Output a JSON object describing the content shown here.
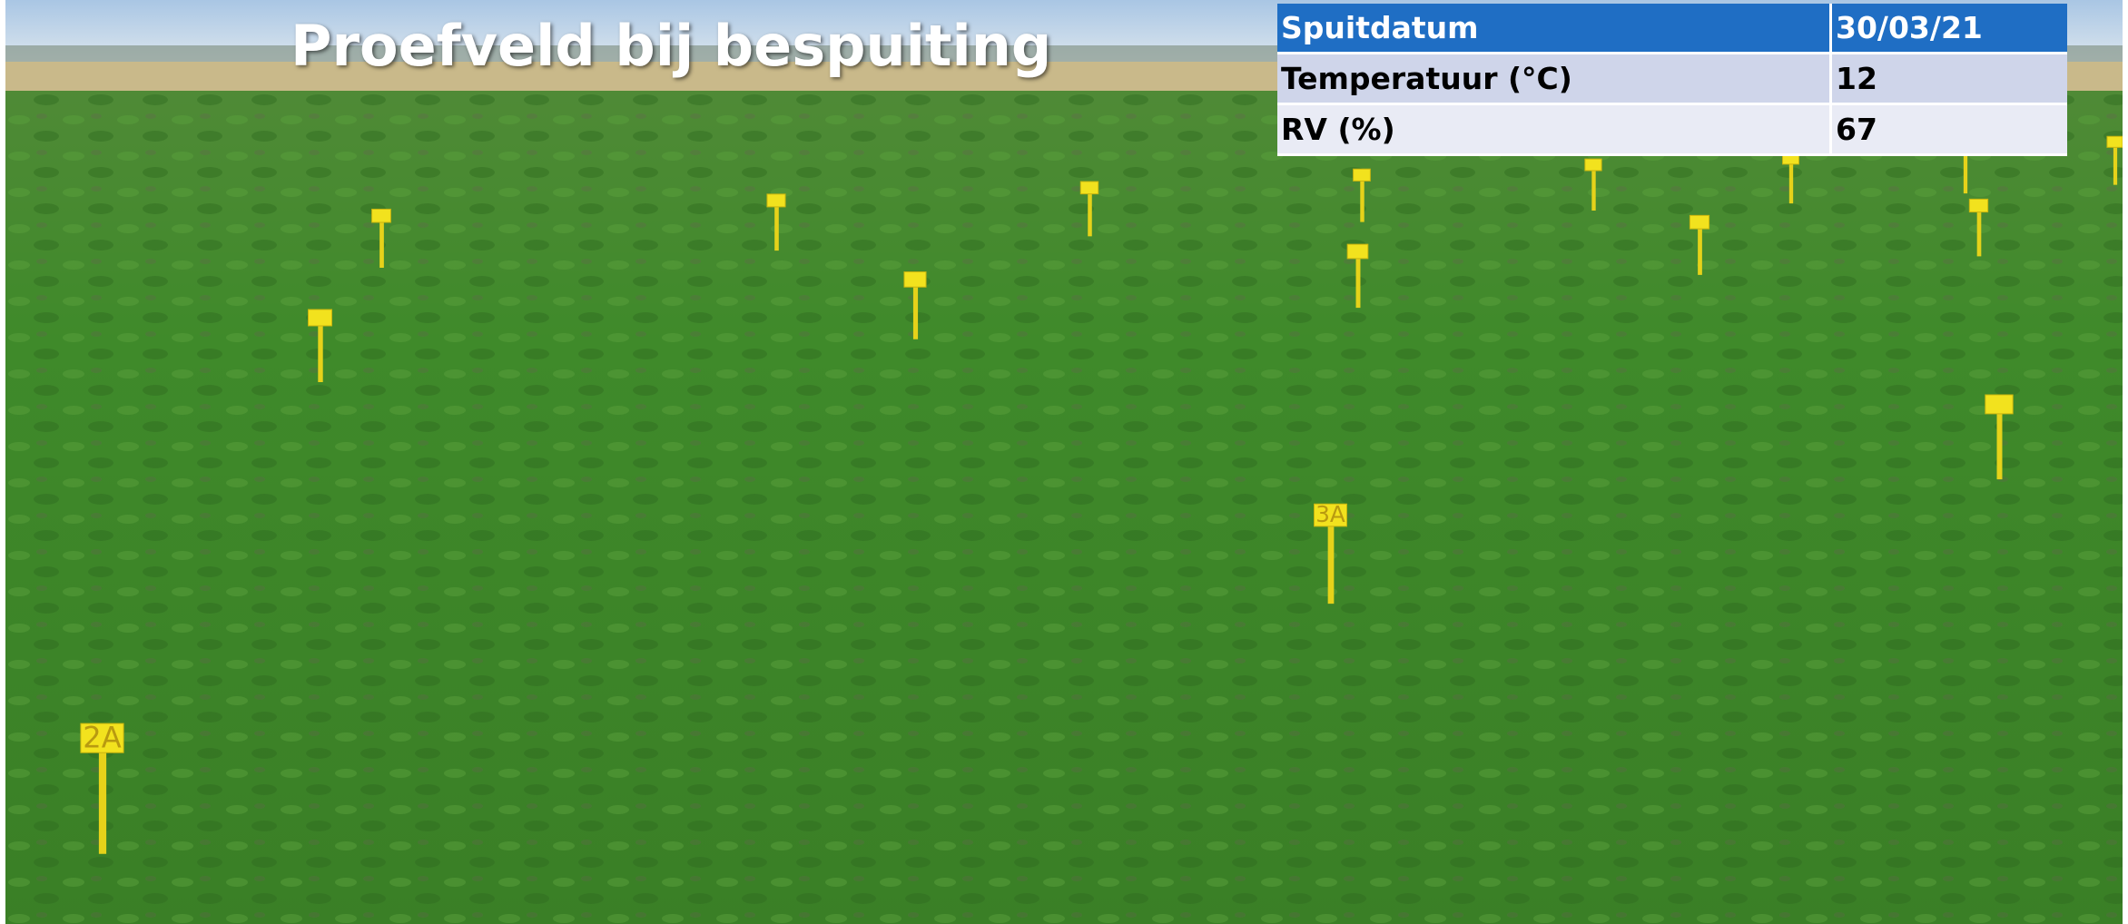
{
  "header": {
    "title": "Proefveld bij bespuiting"
  },
  "table": {
    "rows": [
      [
        "Spuitdatum",
        "30/03/21"
      ],
      [
        "Temperatuur (°C)",
        "12"
      ],
      [
        "RV (%)",
        "67"
      ]
    ]
  },
  "stakes": {
    "labels": [
      "2A",
      "3A"
    ]
  }
}
